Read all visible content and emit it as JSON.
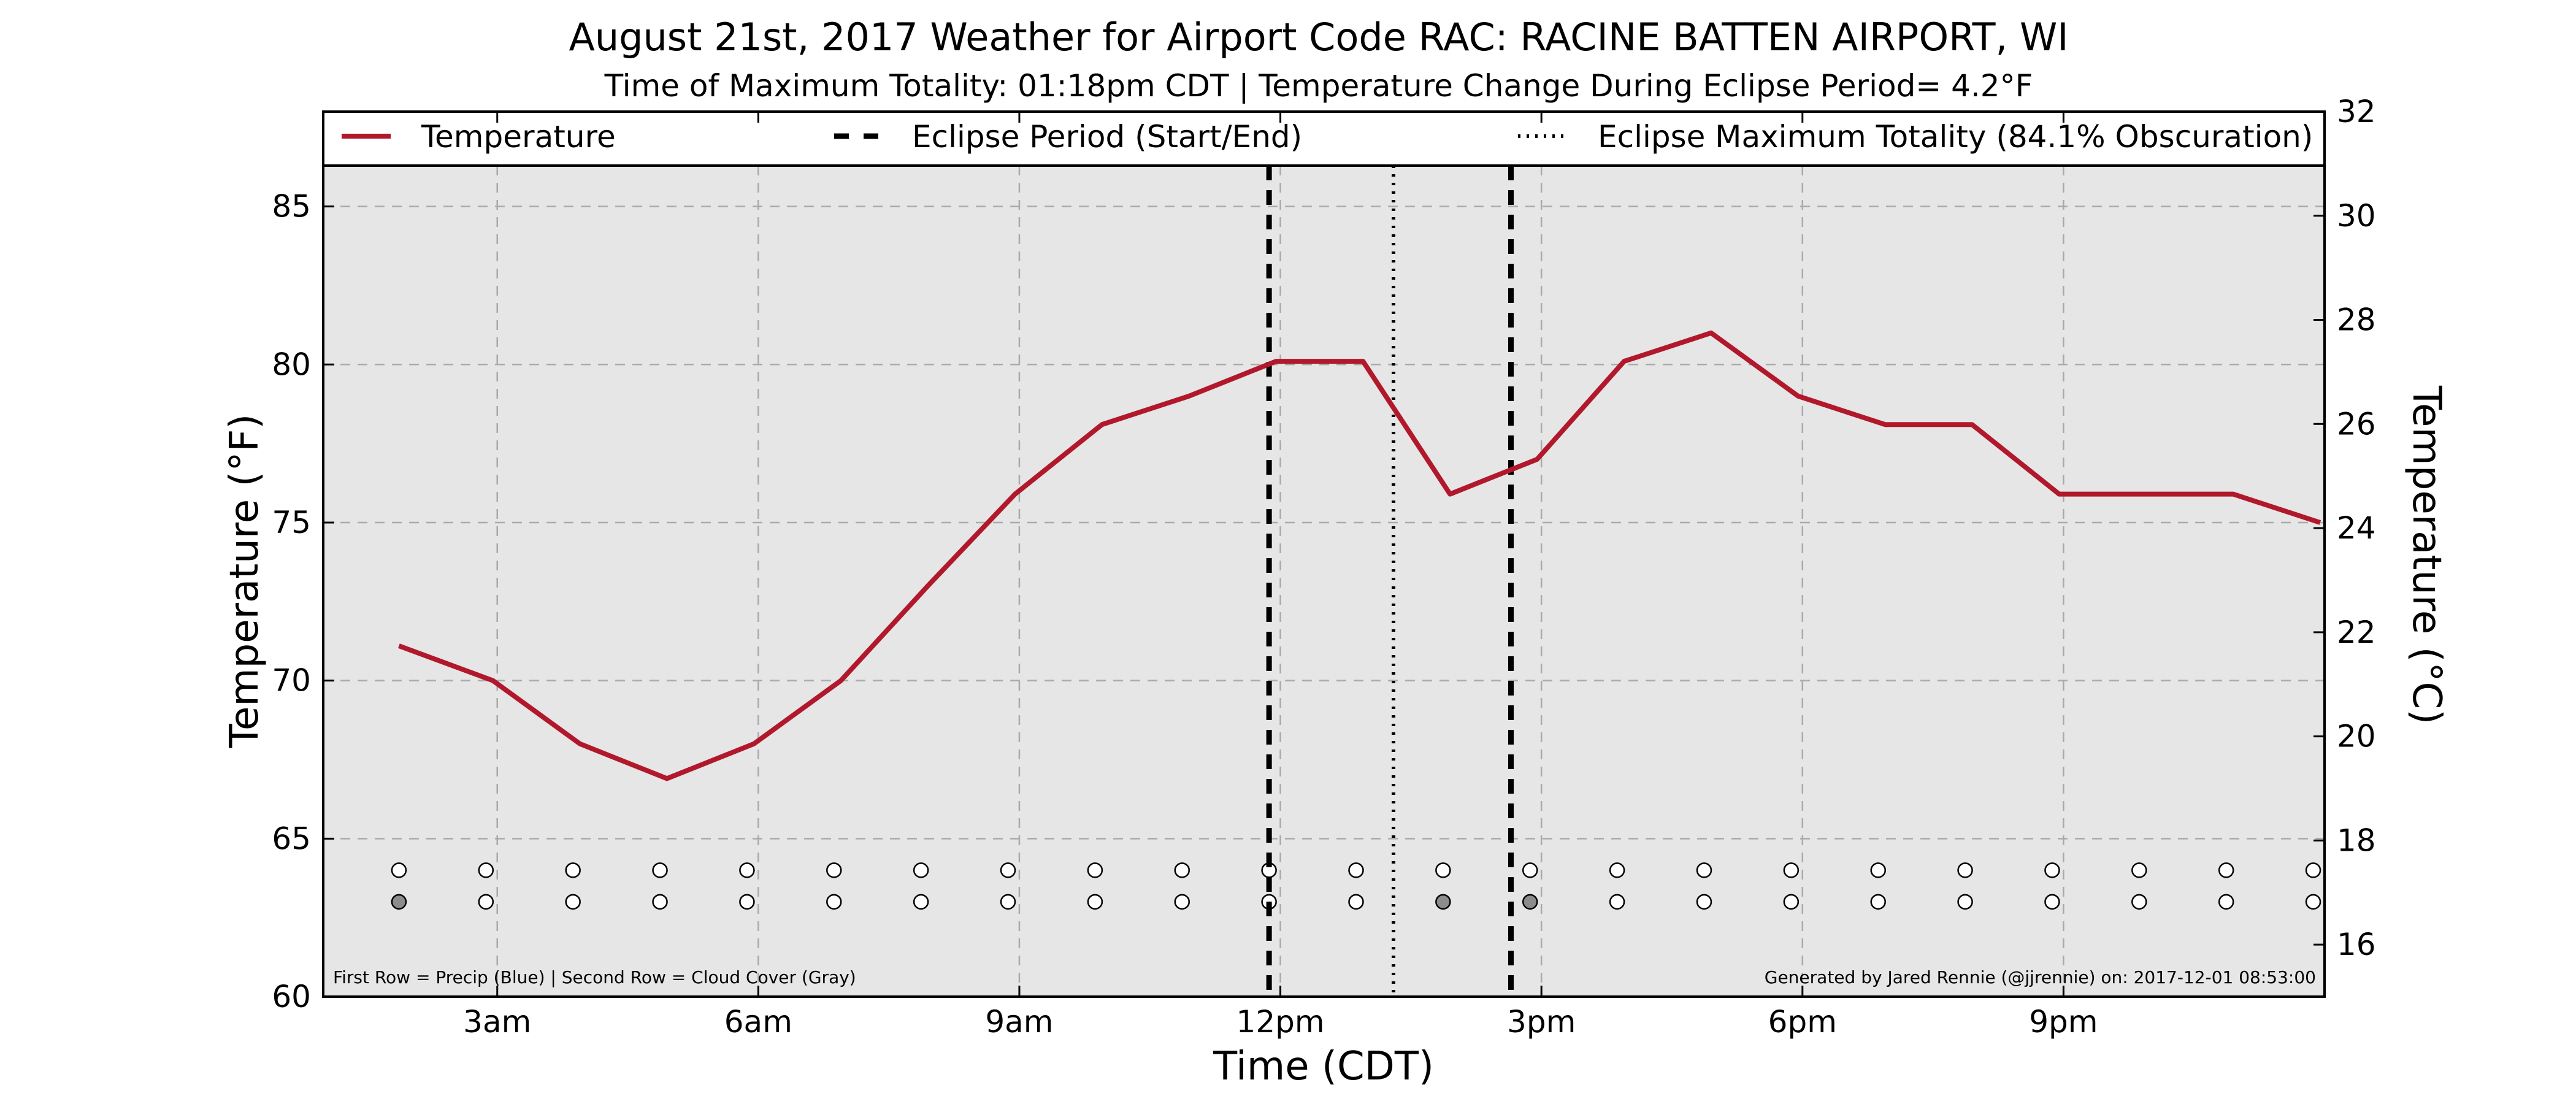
{
  "chart_data": {
    "type": "line",
    "title": "August 21st, 2017 Weather for Airport Code RAC: RACINE BATTEN AIRPORT, WI",
    "subtitle": "Time of Maximum Totality: 01:18pm CDT | Temperature Change During Eclipse Period= 4.2°F",
    "xlabel": "Time (CDT)",
    "ylabel": "Temperature (°F)",
    "ylabel_right": "Temperature (°C)",
    "xlim": [
      1.0,
      24.0
    ],
    "ylim": [
      60,
      88
    ],
    "ylim_right": [
      15.0,
      32.0
    ],
    "x_ticks": [
      {
        "x": 3,
        "label": "3am"
      },
      {
        "x": 6,
        "label": "6am"
      },
      {
        "x": 9,
        "label": "9am"
      },
      {
        "x": 12,
        "label": "12pm"
      },
      {
        "x": 15,
        "label": "3pm"
      },
      {
        "x": 18,
        "label": "6pm"
      },
      {
        "x": 21,
        "label": "9pm"
      }
    ],
    "y_ticks": [
      60,
      65,
      70,
      75,
      80,
      85
    ],
    "y_ticks_right": [
      16,
      18,
      20,
      22,
      24,
      26,
      28,
      30,
      32
    ],
    "grid": true,
    "legend_placement": "top",
    "legend": [
      {
        "label": "Temperature",
        "style": "solid"
      },
      {
        "label": "Eclipse Period (Start/End)",
        "style": "dashed"
      },
      {
        "label": "Eclipse Maximum Totality (84.1% Obscuration)",
        "style": "dotted"
      }
    ],
    "series": [
      {
        "name": "Temperature",
        "color": "#b2182b",
        "x": [
          1.87,
          2.95,
          3.95,
          4.95,
          5.95,
          6.95,
          7.95,
          8.95,
          9.95,
          10.95,
          11.95,
          12.5,
          12.95,
          13.95,
          14.95,
          15.95,
          16.95,
          17.95,
          18.95,
          19.95,
          20.95,
          21.95,
          22.95,
          23.95
        ],
        "y": [
          71.1,
          70.0,
          68.0,
          66.9,
          68.0,
          70.0,
          73.0,
          75.9,
          78.1,
          79.0,
          80.1,
          80.1,
          80.1,
          75.9,
          77.0,
          80.1,
          81.0,
          79.0,
          78.1,
          78.1,
          75.9,
          75.9,
          75.9,
          75.0
        ]
      }
    ],
    "eclipse_start_x": 11.87,
    "eclipse_end_x": 14.65,
    "max_totality_x": 13.3,
    "obs_x": [
      1.87,
      2.87,
      3.87,
      4.87,
      5.87,
      6.87,
      7.87,
      8.87,
      9.87,
      10.87,
      11.87,
      12.87,
      13.87,
      14.87,
      15.87,
      16.87,
      17.87,
      18.87,
      19.87,
      20.87,
      21.87,
      22.87,
      23.87
    ],
    "precip_row_y": 64.0,
    "cloud_row_y": 63.0,
    "precip": [
      0,
      0,
      0,
      0,
      0,
      0,
      0,
      0,
      0,
      0,
      0,
      0,
      0,
      0,
      0,
      0,
      0,
      0,
      0,
      0,
      0,
      0,
      0
    ],
    "cloud_cover": [
      1,
      0,
      0,
      0,
      0,
      0,
      0,
      0,
      0,
      0,
      0,
      0,
      1,
      1,
      0,
      0,
      0,
      0,
      0,
      0,
      0,
      0,
      0
    ],
    "colors": {
      "precip_filled": "#3b6fd4",
      "cloud_filled": "#8c8c8c",
      "empty": "#ffffff",
      "plot_bg": "#e6e6e6",
      "grid": "#aaaaaa"
    },
    "note_left": "First Row = Precip (Blue) | Second Row = Cloud Cover (Gray)",
    "note_right": "Generated by Jared Rennie (@jjrennie) on: 2017-12-01 08:53:00"
  }
}
